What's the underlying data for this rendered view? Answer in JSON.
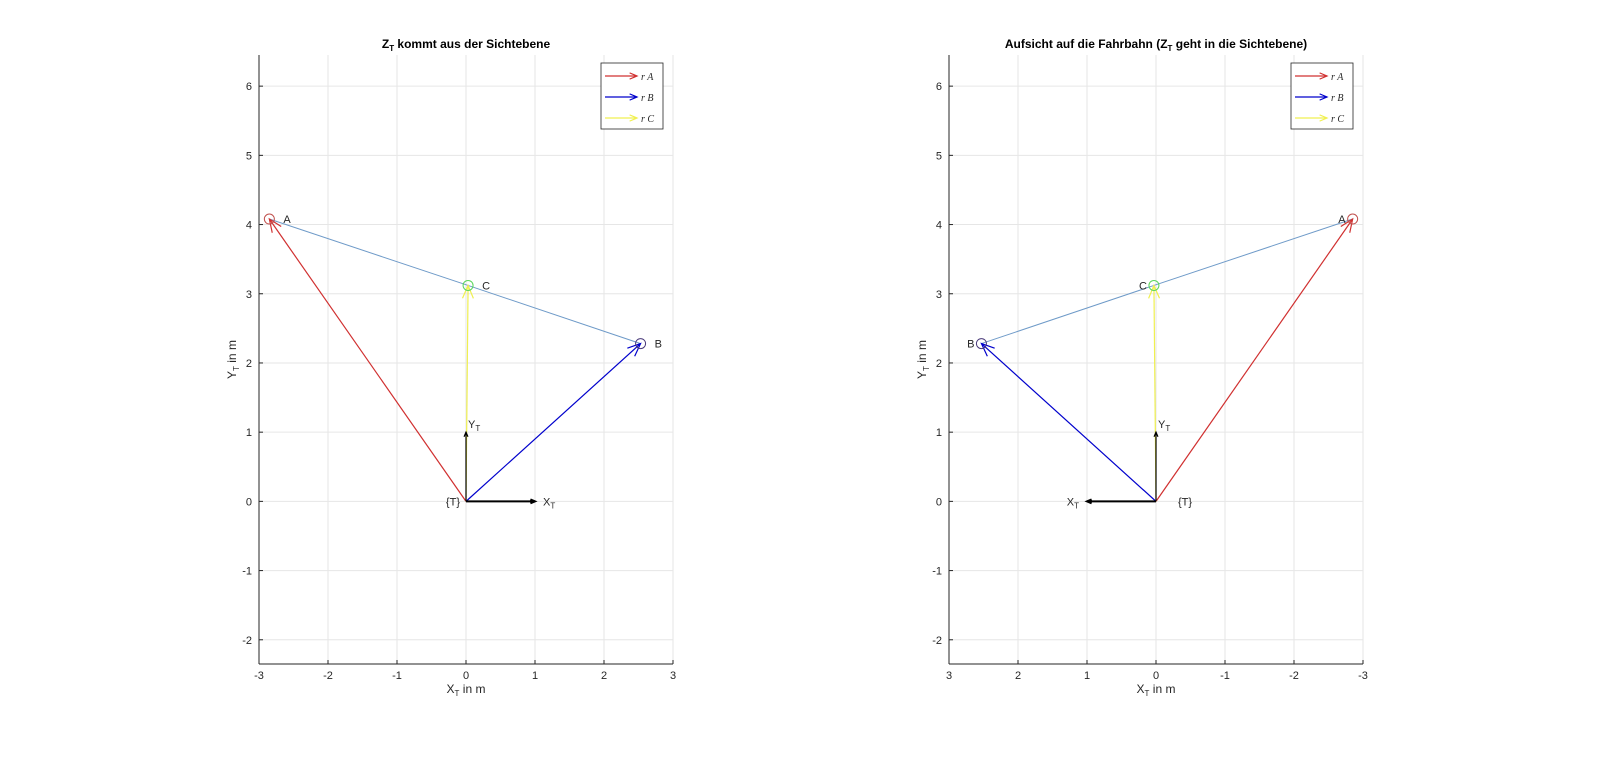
{
  "chart_data": [
    {
      "type": "line",
      "title_parts": [
        "Z",
        "T",
        " kommt  aus  der  Sichtebene"
      ],
      "xlabel_parts": [
        "X",
        "T",
        " in  m"
      ],
      "ylabel_parts": [
        "Y",
        "T",
        " in  m"
      ],
      "xlim": [
        -3,
        3
      ],
      "ylim": [
        -2.35,
        6.45
      ],
      "x_reversed": false,
      "xticks": [
        -3,
        -2,
        -1,
        0,
        1,
        2,
        3
      ],
      "yticks": [
        -2,
        -1,
        0,
        1,
        2,
        3,
        4,
        5,
        6
      ],
      "grid": true,
      "legend_position": "top-right",
      "origin": [
        0,
        0
      ],
      "origin_label": "{T}",
      "frame_axes": [
        {
          "name": "X",
          "sub": "T",
          "dx": 1,
          "dy": 0
        },
        {
          "name": "Y",
          "sub": "T",
          "dx": 0,
          "dy": 1
        }
      ],
      "points": [
        {
          "name": "A",
          "x": -2.85,
          "y": 4.08,
          "color": "#c0504d"
        },
        {
          "name": "B",
          "x": 2.53,
          "y": 2.28,
          "color": "#4a3a7a"
        },
        {
          "name": "C",
          "x": 0.03,
          "y": 3.12,
          "color": "#5cd65c"
        }
      ],
      "triangle_color": "#6e9ac8",
      "series": [
        {
          "name": "r A",
          "target": "A",
          "color": "#d03030"
        },
        {
          "name": "r B",
          "target": "B",
          "color": "#0000cc"
        },
        {
          "name": "r C",
          "target": "C",
          "color": "#f0f050"
        }
      ]
    },
    {
      "type": "line",
      "title_parts": [
        "Aufsicht  auf  die  Fahrbahn  (Z",
        "T",
        " geht  in  die   Sichtebene)"
      ],
      "xlabel_parts": [
        "X",
        "T",
        " in  m"
      ],
      "ylabel_parts": [
        "Y",
        "T",
        " in  m"
      ],
      "xlim": [
        -3,
        3
      ],
      "ylim": [
        -2.35,
        6.45
      ],
      "x_reversed": true,
      "xticks": [
        3,
        2,
        1,
        0,
        -1,
        -2,
        -3
      ],
      "yticks": [
        -2,
        -1,
        0,
        1,
        2,
        3,
        4,
        5,
        6
      ],
      "grid": true,
      "legend_position": "top-right",
      "origin": [
        0,
        0
      ],
      "origin_label": "{T}",
      "frame_axes": [
        {
          "name": "X",
          "sub": "T",
          "dx": 1,
          "dy": 0
        },
        {
          "name": "Y",
          "sub": "T",
          "dx": 0,
          "dy": 1
        }
      ],
      "points": [
        {
          "name": "A",
          "x": -2.85,
          "y": 4.08,
          "color": "#c0504d"
        },
        {
          "name": "B",
          "x": 2.53,
          "y": 2.28,
          "color": "#4a3a7a"
        },
        {
          "name": "C",
          "x": 0.03,
          "y": 3.12,
          "color": "#5cd65c"
        }
      ],
      "triangle_color": "#6e9ac8",
      "series": [
        {
          "name": "r A",
          "target": "A",
          "color": "#d03030"
        },
        {
          "name": "r B",
          "target": "B",
          "color": "#0000cc"
        },
        {
          "name": "r C",
          "target": "C",
          "color": "#f0f050"
        }
      ]
    }
  ]
}
